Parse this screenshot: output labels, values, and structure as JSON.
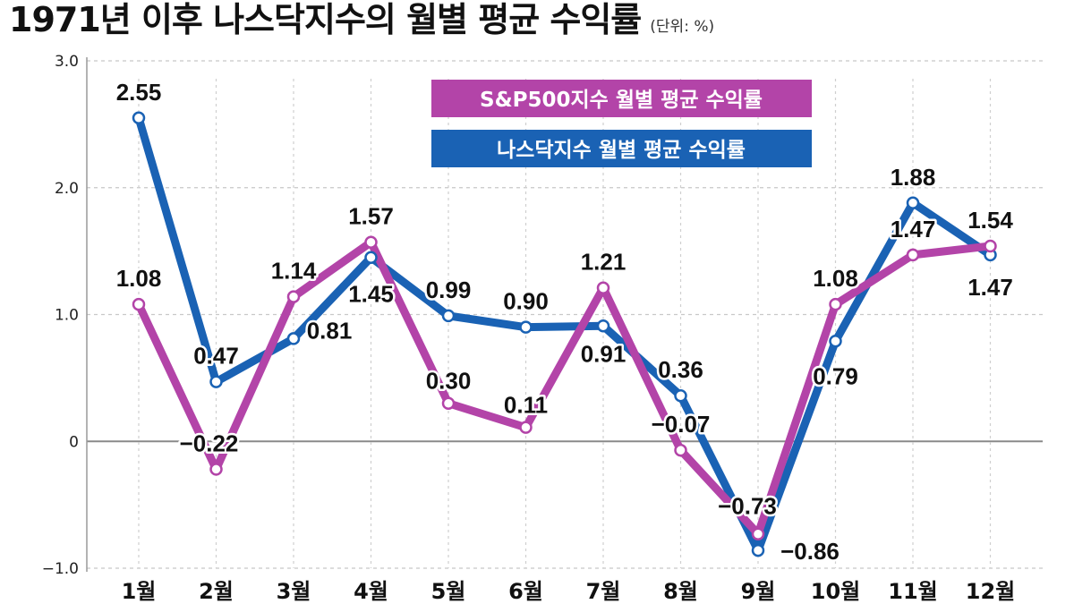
{
  "title": "1971년 이후 나스닥지수의 월별 평균 수익률",
  "unit": "(단위: %)",
  "colors": {
    "sp500": "#b344a8",
    "nasdaq": "#1a62b4"
  },
  "chart_data": {
    "type": "line",
    "title": "1971년 이후 나스닥지수의 월별 평균 수익률",
    "unit": "(단위: %)",
    "categories": [
      "1월",
      "2월",
      "3월",
      "4월",
      "5월",
      "6월",
      "7월",
      "8월",
      "9월",
      "10월",
      "11월",
      "12월"
    ],
    "y_ticks": [
      "3.0",
      "2.0",
      "1.0",
      "0",
      "−1.0"
    ],
    "ylim": [
      -1.0,
      3.0
    ],
    "grid": true,
    "legend_position": "top-right",
    "series": [
      {
        "name": "나스닥지수 월별 평균 수익률",
        "key": "nasdaq",
        "values": [
          2.55,
          0.47,
          0.81,
          1.45,
          0.99,
          0.9,
          0.91,
          0.36,
          -0.86,
          0.79,
          1.88,
          1.47
        ],
        "labels": [
          "2.55",
          "0.47",
          "0.81",
          "1.45",
          "0.99",
          "0.90",
          "0.91",
          "0.36",
          "−0.86",
          "0.79",
          "1.88",
          "1.47"
        ]
      },
      {
        "name": "S&P500지수 월별 평균 수익률",
        "key": "sp500",
        "values": [
          1.08,
          -0.22,
          1.14,
          1.57,
          0.3,
          0.11,
          1.21,
          -0.07,
          -0.73,
          1.08,
          1.47,
          1.54
        ],
        "labels": [
          "1.08",
          "−0.22",
          "1.14",
          "1.57",
          "0.30",
          "0.11",
          "1.21",
          "−0.07",
          "−0.73",
          "1.08",
          "1.47",
          "1.54"
        ]
      }
    ]
  }
}
